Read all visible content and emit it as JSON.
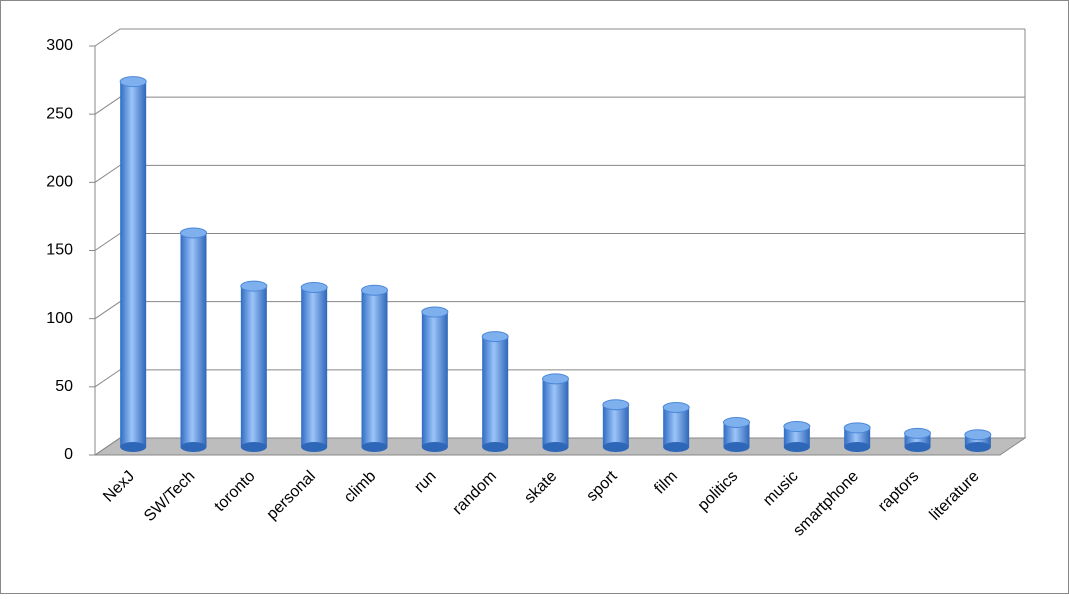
{
  "chart_data": {
    "type": "bar3d",
    "categories": [
      "NexJ",
      "SW/Tech",
      "toronto",
      "personal",
      "climb",
      "run",
      "random",
      "skate",
      "sport",
      "film",
      "politics",
      "music",
      "smartphone",
      "raptors",
      "literature"
    ],
    "values": [
      268,
      157,
      118,
      117,
      115,
      99,
      81,
      50,
      31,
      29,
      18,
      15,
      14,
      10,
      9
    ],
    "color": "#4a86d8",
    "ylim": [
      0,
      300
    ],
    "yticks": [
      0,
      50,
      100,
      150,
      200,
      250,
      300
    ],
    "grid": true
  }
}
